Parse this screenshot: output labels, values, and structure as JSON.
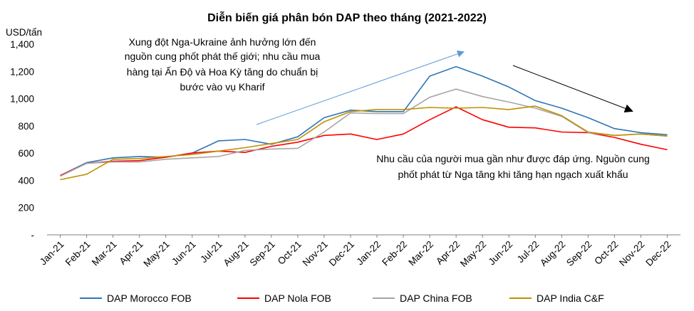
{
  "chart_data": {
    "type": "line",
    "title": "Diễn biến giá phân bón DAP theo tháng (2021-2022)",
    "ylabel": "USD/tấn",
    "xlabel": "",
    "ylim": [
      0,
      1400
    ],
    "yticks": [
      0,
      200,
      400,
      600,
      800,
      1000,
      1200,
      1400
    ],
    "ytick_labels": [
      "-",
      "200",
      "400",
      "600",
      "800",
      "1,000",
      "1,200",
      "1,400"
    ],
    "categories": [
      "Jan-21",
      "Feb-21",
      "Mar-21",
      "Apr-21",
      "May-21",
      "Jun-21",
      "Jul-21",
      "Aug-21",
      "Sep-21",
      "Oct-21",
      "Nov-21",
      "Dec-21",
      "Jan-22",
      "Feb-22",
      "Mar-22",
      "Apr-22",
      "May-22",
      "Jun-22",
      "Jul-22",
      "Aug-22",
      "Sep-22",
      "Oct-22",
      "Nov-22",
      "Dec-22"
    ],
    "grid": false,
    "legend_position": "bottom",
    "series": [
      {
        "name": "DAP Morocco FOB",
        "color": "#2e75b6",
        "values": [
          435,
          530,
          565,
          575,
          570,
          600,
          690,
          700,
          665,
          720,
          860,
          915,
          905,
          905,
          1165,
          1235,
          1165,
          1085,
          985,
          930,
          860,
          780,
          750,
          735
        ]
      },
      {
        "name": "DAP Nola FOB",
        "color": "#ff0000",
        "values": [
          435,
          525,
          540,
          545,
          570,
          600,
          615,
          605,
          650,
          680,
          730,
          740,
          700,
          740,
          845,
          940,
          845,
          790,
          785,
          755,
          750,
          715,
          665,
          625
        ]
      },
      {
        "name": "DAP China FOB",
        "color": "#a6a6a6",
        "values": [
          430,
          525,
          535,
          535,
          555,
          565,
          575,
          620,
          630,
          635,
          755,
          895,
          890,
          890,
          1010,
          1070,
          1015,
          975,
          930,
          870,
          750,
          730,
          740,
          725
        ]
      },
      {
        "name": "DAP India C&F",
        "color": "#bf9000",
        "values": [
          405,
          445,
          555,
          560,
          575,
          590,
          615,
          640,
          670,
          700,
          830,
          905,
          920,
          920,
          935,
          930,
          935,
          920,
          945,
          875,
          755,
          730,
          740,
          725
        ]
      }
    ],
    "annotations": [
      {
        "lines": [
          "Xung đột Nga-Ukraine ảnh hưởng lớn đến",
          "nguồn cung phốt phát thế giới; nhu cầu mua",
          "hàng tại Ấn Độ và Hoa Kỳ tăng do chuẩn bị",
          "bước vào vụ Kharif"
        ]
      },
      {
        "lines": [
          "Nhu cầu của người mua gần như được đáp ứng. Nguồn cung",
          "phốt phát từ Nga tăng khi tăng hạn ngạch xuất khẩu"
        ]
      }
    ]
  }
}
